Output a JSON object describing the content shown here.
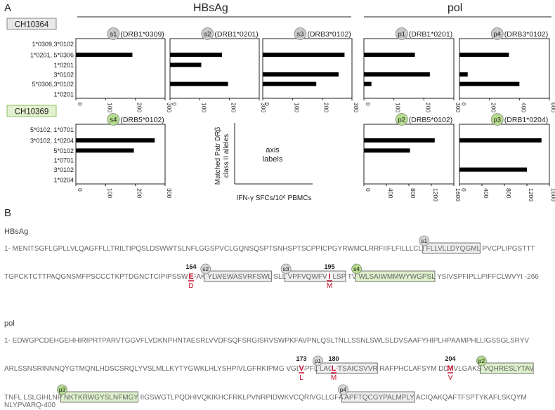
{
  "panel_a_label": "A",
  "panel_b_label": "B",
  "group_headers": {
    "hbsag": "HBsAg",
    "pol": "pol"
  },
  "patients": [
    {
      "id": "CH10364",
      "color": "#e8e8e8",
      "border": "#888"
    },
    {
      "id": "CH10369",
      "color": "#e3f0d0",
      "border": "#8fbf60"
    }
  ],
  "legend_box": {
    "ylabel_lines": [
      "Matched Patr DRβ",
      "class II alleles"
    ],
    "xlabel": "IFN-γ SFCs/10⁶ PBMCs",
    "center_lines": [
      "axis",
      "labels"
    ]
  },
  "chart_data": [
    {
      "type": "bar",
      "patient": "CH10364",
      "badge": "s1",
      "badge_color": "#c8c8c8",
      "allele": "(DRB1*0309)",
      "categories": [
        "1*0309,3*0102",
        "1*0201, 5*0306",
        "1*0201",
        "3*0102",
        "5*0306,3*0102",
        "1*0201"
      ],
      "values": [
        0,
        190,
        0,
        0,
        0,
        0
      ],
      "xlim": [
        0,
        300
      ],
      "xticks": [
        "0",
        "100",
        "200",
        "300"
      ]
    },
    {
      "type": "bar",
      "patient": "CH10364",
      "badge": "s2",
      "badge_color": "#c8c8c8",
      "allele": "(DRB1*0201)",
      "values": [
        0,
        175,
        105,
        0,
        195,
        0
      ],
      "xlim": [
        0,
        300
      ],
      "xticks": [
        "0",
        "100",
        "200",
        "300"
      ]
    },
    {
      "type": "bar",
      "patient": "CH10364",
      "badge": "s3",
      "badge_color": "#c8c8c8",
      "allele": "(DRB3*0102)",
      "values": [
        0,
        275,
        0,
        255,
        180,
        0
      ],
      "xlim": [
        0,
        300
      ],
      "xticks": [
        "0",
        "100",
        "200",
        "300"
      ]
    },
    {
      "type": "bar",
      "patient": "CH10364",
      "badge": "p1",
      "badge_color": "#c8c8c8",
      "allele": "(DRB1*0201)",
      "values": [
        0,
        170,
        0,
        220,
        25,
        0
      ],
      "xlim": [
        0,
        300
      ],
      "xticks": [
        "0",
        "100",
        "200",
        "300"
      ]
    },
    {
      "type": "bar",
      "patient": "CH10364",
      "badge": "p4",
      "badge_color": "#c8c8c8",
      "allele": "(DRB3*0102)",
      "values": [
        0,
        330,
        0,
        55,
        400,
        0
      ],
      "xlim": [
        0,
        600
      ],
      "xticks": [
        "0",
        "200",
        "400",
        "600"
      ]
    },
    {
      "type": "bar",
      "patient": "CH10369",
      "badge": "s4",
      "badge_color": "#b5dc8c",
      "allele": "(DRB5*0102)",
      "categories": [
        "5*0102, 1*0701",
        "3*0102, 1*0204",
        "5*0102",
        "1*0701",
        "3*0102",
        "1*0204"
      ],
      "values": [
        0,
        265,
        195,
        0,
        0,
        0
      ],
      "xlim": [
        0,
        300
      ],
      "xticks": [
        "0",
        "100",
        "200",
        "300"
      ]
    },
    {
      "type": "bar",
      "patient": "CH10369",
      "badge": "p2",
      "badge_color": "#b5dc8c",
      "allele": "(DRB5*0102)",
      "values": [
        0,
        1260,
        820,
        0,
        0,
        0
      ],
      "xlim": [
        0,
        1600
      ],
      "xticks": [
        "0",
        "400",
        "800",
        "1200",
        "1600"
      ]
    },
    {
      "type": "bar",
      "patient": "CH10369",
      "badge": "p3",
      "badge_color": "#b5dc8c",
      "allele": "(DRB1*0204)",
      "values": [
        0,
        1460,
        0,
        0,
        1200,
        0
      ],
      "xlim": [
        0,
        1600
      ],
      "xticks": [
        "0",
        "400",
        "800",
        "1200",
        "1600"
      ]
    }
  ],
  "panel_b": {
    "hbsag_label": "HBsAg",
    "pol_label": "pol",
    "lines": [
      {
        "text": "1- MENITSGFLGPLLVLQAGFFLLTRILTIPQSLDSWWTSLNFLGGSPVCLGQNSQSPTSNHSPTSCPPICPGYRWMCLRRFIIFLFILLLCLI FLLVLLDYQGML PVCPLIPGSTTT"
      },
      {
        "text": "TGPCKTCTTPAQGNSMFPSCCCTKPTDGNCTCIPIPSSWAFAK YLWEWASVRFSWL SLL VPFVQWFVGLSP TV WLSAIWMMWYWGPSL YSIVSPFIPLLPIFFCLWVYI -266"
      },
      {
        "text": "1- EDWGPCDEHGEHHIRIPRTPARVTGGVFLVDKNPHNTAESRLVVDFSQFSRGISRVSWPKFAVPNLQSLTNLLSSNLSWLSLDVSAAFYHIPLHPAAMPHLLIGSSGLSRYV"
      },
      {
        "text": "ARLSSNSRINNNQYGTMQNLHDSCSRQLYVSLMLLKYTYGWKLHLYSHPIVLGFRKIPMG VGLSPFL LAQFTSAICSVVR RAFPHCLAFSYM DDVVLGAKS VQHRESLYTAV"
      },
      {
        "text": "TNFL LSLGIHLNP NKTKRWGYSLNFMGY IIGSWGTLPQDHIVQKIKHCFRKLPVNRPIDWKVCQRIVGLLGFA APFTQCGYPALMPLY ACIQAKQAFTFSPTYKAFLSKQYM"
      },
      {
        "text": "NLYPVARQ-400"
      }
    ],
    "epitopes": [
      {
        "id": "s1",
        "seq": "FLLVLLDYQGML",
        "color": "#d8d8d8"
      },
      {
        "id": "s2",
        "seq": "YLWEWASVRFSWL",
        "color": "#d8d8d8"
      },
      {
        "id": "s3",
        "seq": "VPFVQWFVGLSP",
        "color": "#d8d8d8"
      },
      {
        "id": "s4",
        "seq": "WLSAIWMMWYWGPSL",
        "color": "#b5dc8c"
      },
      {
        "id": "p1",
        "seq": "LAQFTSAICSVVR",
        "color": "#d8d8d8"
      },
      {
        "id": "p2",
        "seq": "VQHRESLYTAV",
        "color": "#b5dc8c"
      },
      {
        "id": "p3",
        "seq": "NKTKRWGYSLNFMGY",
        "color": "#b5dc8c"
      },
      {
        "id": "p4",
        "seq": "APFTQCGYPALMPLY",
        "color": "#d8d8d8"
      }
    ],
    "mutations": [
      {
        "pos": "164",
        "wt": "E",
        "mut": "D"
      },
      {
        "pos": "195",
        "wt": "I",
        "mut": "M"
      },
      {
        "pos": "173",
        "wt": "V",
        "mut": "L"
      },
      {
        "pos": "180",
        "wt": "L",
        "mut": "M"
      },
      {
        "pos": "204",
        "wt": "M",
        "mut": "V"
      }
    ]
  }
}
